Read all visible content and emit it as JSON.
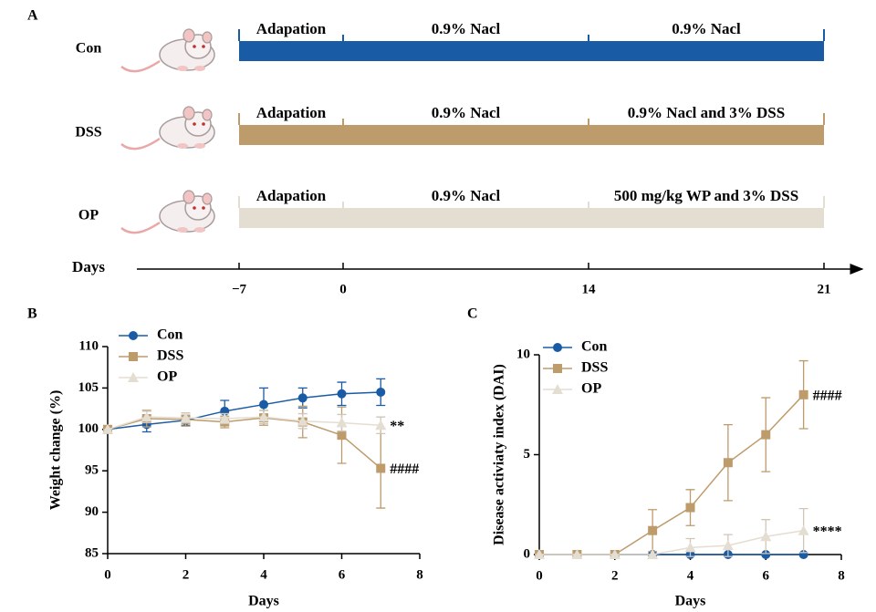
{
  "diagram": {
    "label": "A",
    "rows": [
      {
        "name": "Con",
        "color": "#1a5ba6",
        "segments": [
          "Adapation",
          "0.9% Nacl",
          "0.9% Nacl"
        ]
      },
      {
        "name": "DSS",
        "color": "#bd9b6b",
        "segments": [
          "Adapation",
          "0.9% Nacl",
          "0.9% Nacl and 3% DSS"
        ]
      },
      {
        "name": "OP",
        "color": "#e4ddd2",
        "segments": [
          "Adapation",
          "0.9% Nacl",
          "500 mg/kg WP and 3% DSS"
        ]
      }
    ],
    "timeline": {
      "label": "Days",
      "ticks": [
        {
          "value": -7,
          "label": "−7"
        },
        0,
        14,
        21
      ]
    }
  },
  "chart_data": [
    {
      "type": "line",
      "label": "B",
      "xlabel": "Days",
      "ylabel": "Weight change (%)",
      "x": [
        0,
        1,
        2,
        3,
        4,
        5,
        6,
        7
      ],
      "xlim": [
        0,
        8
      ],
      "xticks": [
        0,
        2,
        4,
        6,
        8
      ],
      "ylim": [
        85,
        110
      ],
      "yticks": [
        85,
        90,
        95,
        100,
        105,
        110
      ],
      "series": [
        {
          "name": "Con",
          "color": "#1a5ba6",
          "marker": "circle",
          "values": [
            100,
            100.6,
            101.1,
            102.2,
            103.0,
            103.8,
            104.3,
            104.5
          ],
          "errors": [
            0,
            0.9,
            0.6,
            1.3,
            2.0,
            1.2,
            1.4,
            1.6
          ]
        },
        {
          "name": "DSS",
          "color": "#bd9b6b",
          "marker": "square",
          "values": [
            100,
            101.3,
            101.2,
            100.9,
            101.4,
            100.9,
            99.3,
            95.3
          ],
          "errors": [
            0,
            1.0,
            0.8,
            0.7,
            0.9,
            1.9,
            3.4,
            4.8
          ],
          "annotation": "####"
        },
        {
          "name": "OP",
          "color": "#e4ddd2",
          "marker": "triangle",
          "values": [
            100,
            101.5,
            101.4,
            101.3,
            101.5,
            101.0,
            100.8,
            100.5
          ],
          "errors": [
            0,
            0.7,
            0.6,
            0.6,
            0.8,
            0.9,
            1.0,
            1.0
          ],
          "annotation": "**"
        }
      ]
    },
    {
      "type": "line",
      "label": "C",
      "xlabel": "Days",
      "ylabel": "Disease activiaty index (DAI)",
      "x": [
        0,
        1,
        2,
        3,
        4,
        5,
        6,
        7
      ],
      "xlim": [
        0,
        8
      ],
      "xticks": [
        0,
        2,
        4,
        6,
        8
      ],
      "ylim": [
        0,
        10
      ],
      "yticks": [
        0,
        5,
        10
      ],
      "series": [
        {
          "name": "Con",
          "color": "#1a5ba6",
          "marker": "circle",
          "values": [
            0,
            0,
            0,
            0,
            0,
            0,
            0,
            0
          ],
          "errors": [
            0,
            0,
            0,
            0,
            0,
            0,
            0,
            0
          ]
        },
        {
          "name": "DSS",
          "color": "#bd9b6b",
          "marker": "square",
          "values": [
            0,
            0,
            0,
            1.2,
            2.35,
            4.6,
            6.0,
            8.0
          ],
          "errors": [
            0,
            0,
            0,
            1.05,
            0.9,
            1.9,
            1.85,
            1.7
          ],
          "annotation": "####"
        },
        {
          "name": "OP",
          "color": "#e4ddd2",
          "marker": "triangle",
          "values": [
            0,
            0,
            0,
            0,
            0.35,
            0.45,
            0.9,
            1.2
          ],
          "errors": [
            0,
            0,
            0,
            0,
            0.45,
            0.55,
            0.85,
            1.1
          ],
          "annotation": "****"
        }
      ]
    }
  ]
}
